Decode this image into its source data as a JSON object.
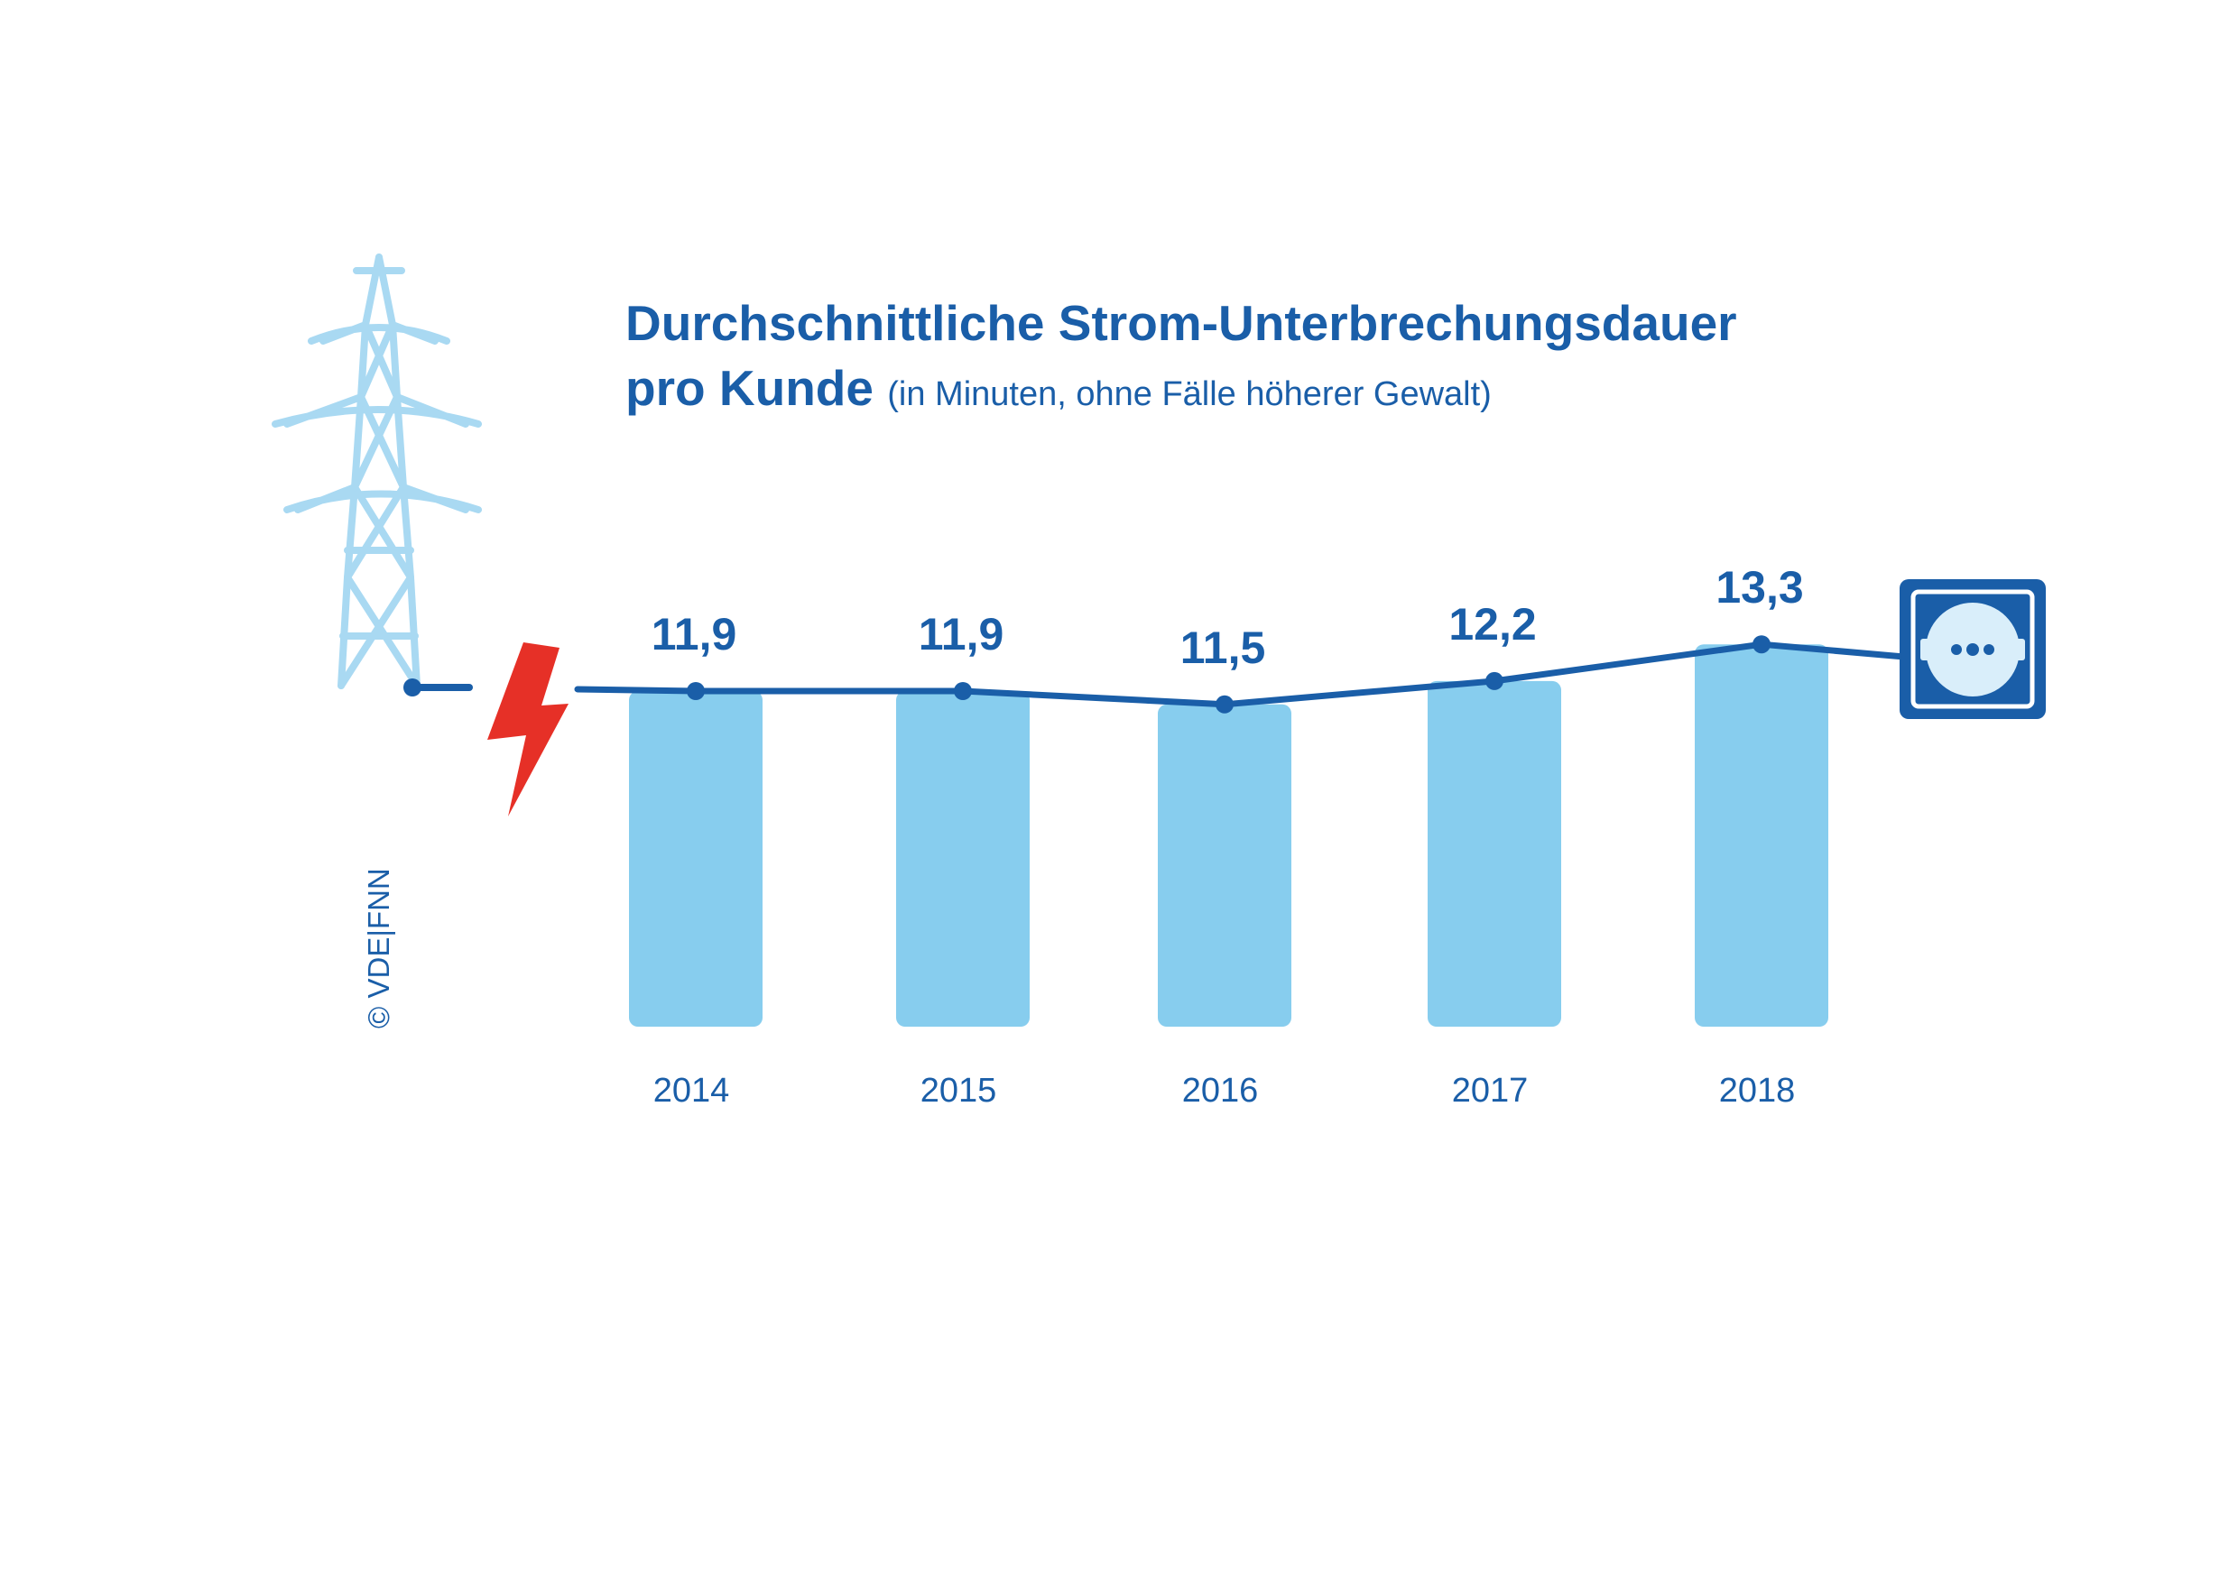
{
  "title": {
    "line1": "Durchschnittliche Strom-Unterbrechungsdauer",
    "line2": "pro Kunde",
    "line2_sub": "(in Minuten, ohne Fälle höherer Gewalt)"
  },
  "credit": "© VDE|FNN",
  "colors": {
    "bar": "#87cdee",
    "line": "#1a5ea8",
    "text": "#1a5ea8",
    "pylon": "#a9d9f2",
    "bolt": "#e63027"
  },
  "icons": [
    "power-pylon-icon",
    "lightning-bolt-icon",
    "power-socket-icon"
  ],
  "chart_data": {
    "type": "bar",
    "categories": [
      "2014",
      "2015",
      "2016",
      "2017",
      "2018"
    ],
    "values": [
      11.9,
      11.9,
      11.5,
      12.2,
      13.3
    ],
    "value_labels": [
      "11,9",
      "11,9",
      "11,5",
      "12,2",
      "13,3"
    ],
    "title": "Durchschnittliche Strom-Unterbrechungsdauer pro Kunde",
    "subtitle": "(in Minuten, ohne Fälle höherer Gewalt)",
    "xlabel": "",
    "ylabel": "",
    "overlay": "line",
    "grid": false,
    "legend": "none"
  }
}
